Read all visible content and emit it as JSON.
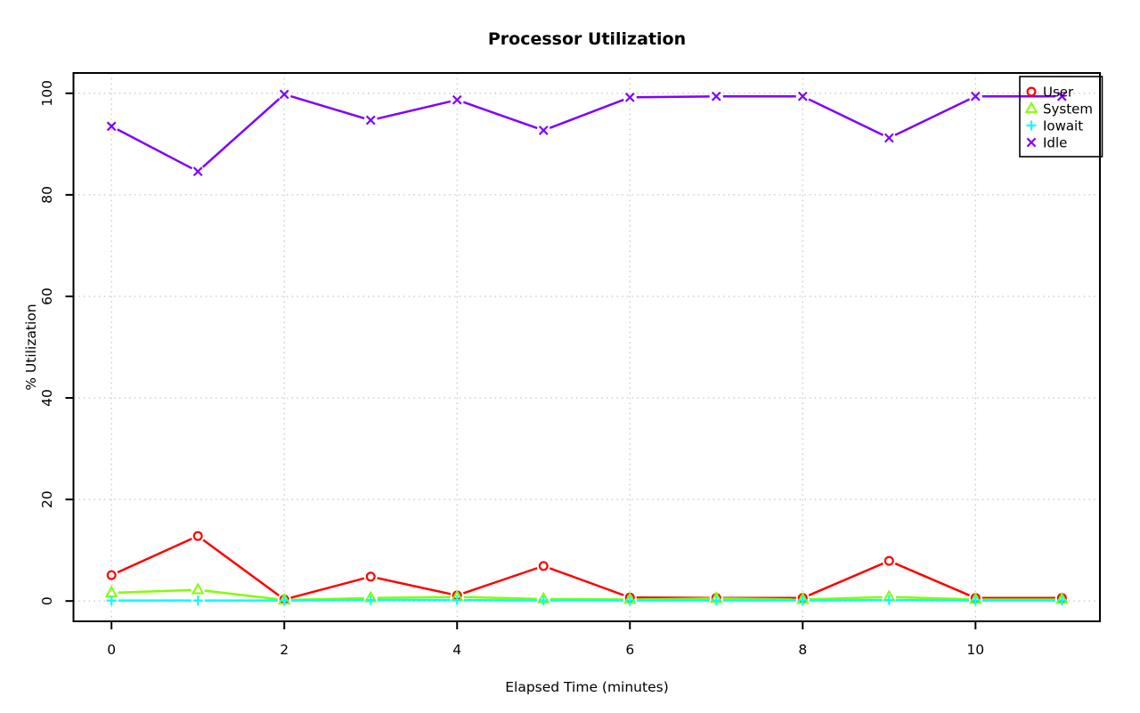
{
  "chart_data": {
    "type": "line",
    "title": "Processor Utilization",
    "xlabel": "Elapsed Time (minutes)",
    "ylabel": "% Utilization",
    "x": [
      0,
      1,
      2,
      3,
      4,
      5,
      6,
      7,
      8,
      9,
      10,
      11
    ],
    "xlim": [
      0,
      11
    ],
    "ylim": [
      0,
      100
    ],
    "x_ticks": [
      0,
      2,
      4,
      6,
      8,
      10
    ],
    "y_ticks": [
      0,
      20,
      40,
      60,
      80,
      100
    ],
    "grid": true,
    "grid_style": "dotted",
    "grid_color": "#c8c8c8",
    "axis_color": "#000000",
    "background_color": "#ffffff",
    "legend_position": "top-right",
    "series": [
      {
        "name": "User",
        "color": "#ff0000",
        "marker": "circle",
        "values": [
          5.1,
          12.8,
          0.3,
          4.8,
          1.1,
          6.9,
          0.7,
          0.6,
          0.6,
          7.9,
          0.6,
          0.6
        ]
      },
      {
        "name": "System",
        "color": "#80ff00",
        "marker": "triangle",
        "values": [
          1.6,
          2.2,
          0.2,
          0.6,
          0.8,
          0.4,
          0.3,
          0.5,
          0.3,
          0.8,
          0.3,
          0.3
        ]
      },
      {
        "name": "Iowait",
        "color": "#00ffff",
        "marker": "plus",
        "values": [
          0.1,
          0.1,
          0.1,
          0.2,
          0.2,
          0.1,
          0.1,
          0.1,
          0.1,
          0.2,
          0.1,
          0.1
        ]
      },
      {
        "name": "Idle",
        "color": "#8000ff",
        "marker": "x",
        "values": [
          93.5,
          84.6,
          99.8,
          94.7,
          98.7,
          92.7,
          99.2,
          99.4,
          99.4,
          91.2,
          99.4,
          99.4
        ]
      }
    ]
  }
}
